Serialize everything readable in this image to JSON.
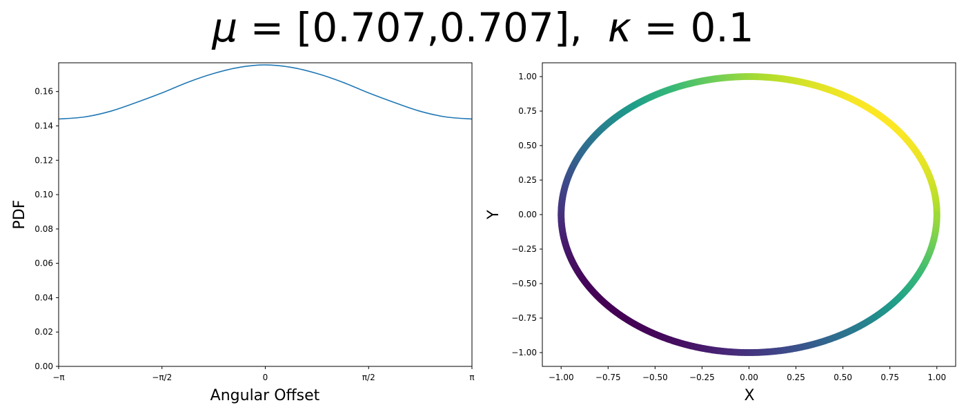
{
  "title": {
    "mu_symbol": "μ",
    "mu_value": " = [0.707,0.707],  ",
    "kappa_symbol": "κ",
    "kappa_value": " = 0.1"
  },
  "chart_data": [
    {
      "type": "line",
      "xlabel": "Angular Offset",
      "ylabel": "PDF",
      "xlim": [
        -3.14159265,
        3.14159265
      ],
      "ylim": [
        0,
        0.17674
      ],
      "xticks": [
        {
          "value": -3.14159265,
          "label": "−π"
        },
        {
          "value": -1.5707963,
          "label": "−π/2"
        },
        {
          "value": 0,
          "label": "0"
        },
        {
          "value": 1.5707963,
          "label": "π/2"
        },
        {
          "value": 3.14159265,
          "label": "π"
        }
      ],
      "yticks": [
        "0.00",
        "0.02",
        "0.04",
        "0.06",
        "0.08",
        "0.10",
        "0.12",
        "0.14",
        "0.16"
      ],
      "yticks_values": [
        0,
        0.02,
        0.04,
        0.06,
        0.08,
        0.1,
        0.12,
        0.14,
        0.16
      ],
      "series": [
        {
          "color": "#1f77b4",
          "x": [
            -3.1416,
            -2.7489,
            -2.3562,
            -1.9635,
            -1.5708,
            -1.1781,
            -0.7854,
            -0.3927,
            0,
            0.3927,
            0.7854,
            1.1781,
            1.5708,
            1.9635,
            2.3562,
            2.7489,
            3.1416
          ],
          "y": [
            0.144,
            0.1452,
            0.1485,
            0.1536,
            0.1592,
            0.1654,
            0.1705,
            0.1741,
            0.1755,
            0.1741,
            0.1705,
            0.1654,
            0.1592,
            0.1536,
            0.1485,
            0.1452,
            0.144
          ]
        }
      ],
      "grid": false
    },
    {
      "type": "scatter",
      "xlabel": "X",
      "ylabel": "Y",
      "xlim": [
        -1.1,
        1.1
      ],
      "ylim": [
        -1.1,
        1.1
      ],
      "xticks": [
        "−1.00",
        "−0.75",
        "−0.50",
        "−0.25",
        "0.00",
        "0.25",
        "0.50",
        "0.75",
        "1.00"
      ],
      "yticks": [
        "−1.00",
        "−0.75",
        "−0.50",
        "−0.25",
        "0.00",
        "0.25",
        "0.50",
        "0.75",
        "1.00"
      ],
      "tick_values": [
        -1,
        -0.75,
        -0.5,
        -0.25,
        0,
        0.25,
        0.5,
        0.75,
        1
      ],
      "points": "unit circle x=cos(t), y=sin(t), colored by density (viridis), highest at 45°",
      "colormap": [
        "#440154",
        "#482878",
        "#3e4989",
        "#31688e",
        "#26828e",
        "#1f9e89",
        "#35b779",
        "#6ece58",
        "#b5de2b",
        "#fde725"
      ],
      "grid": false
    }
  ]
}
